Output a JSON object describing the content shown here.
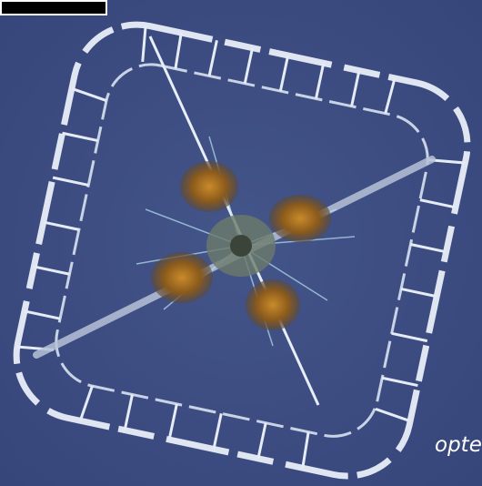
{
  "caption": "optera"
}
